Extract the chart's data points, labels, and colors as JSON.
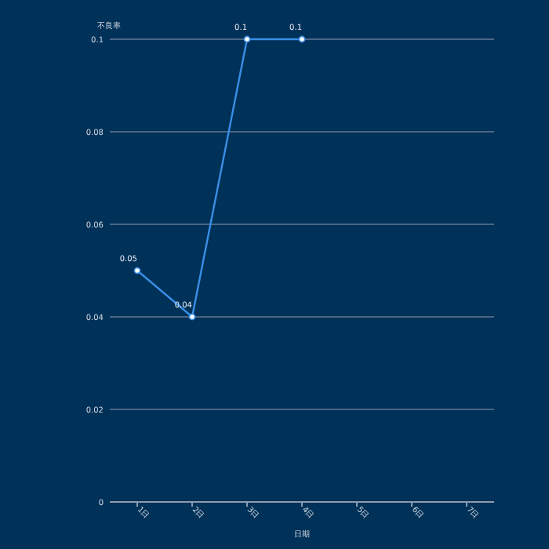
{
  "chart_data": {
    "type": "line",
    "ylabel": "不良率",
    "xlabel": "日期",
    "categories": [
      "1日",
      "2日",
      "3日",
      "4日",
      "5日",
      "6日",
      "7日"
    ],
    "series": [
      {
        "color": "#3a8ee6",
        "values": [
          0.05,
          0.04,
          0.1,
          0.1,
          null,
          null,
          null
        ]
      }
    ],
    "ylim": [
      0,
      0.1
    ],
    "yticks": [
      0,
      0.02,
      0.04,
      0.06,
      0.08,
      0.1
    ],
    "grid": "y",
    "marker": "circle",
    "data_labels": true
  }
}
